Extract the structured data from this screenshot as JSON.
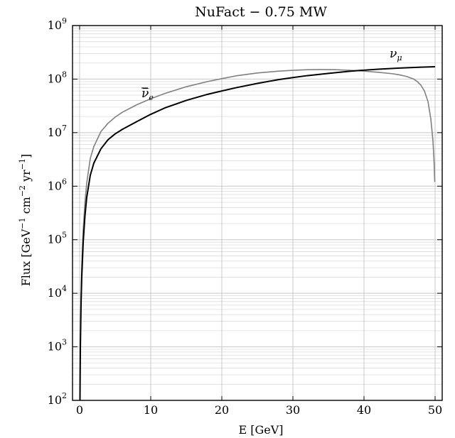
{
  "chart_data": {
    "type": "line",
    "title": "NuFact − 0.75 MW",
    "xlabel": "E [GeV]",
    "ylabel": {
      "base": "Flux [GeV",
      "sup1": "−1",
      "mid1": " cm",
      "sup2": "−2",
      "mid2": " yr",
      "sup3": "−1",
      "end": "]"
    },
    "xlim": [
      -1,
      51
    ],
    "ylim": [
      100,
      1000000000
    ],
    "yscale": "log",
    "grid": true,
    "x_ticks": [
      "0",
      "10",
      "20",
      "30",
      "40",
      "50"
    ],
    "x_tick_values": [
      0,
      10,
      20,
      30,
      40,
      50
    ],
    "y_ticks": [
      {
        "base": "10",
        "exp": "2",
        "value": 100
      },
      {
        "base": "10",
        "exp": "3",
        "value": 1000
      },
      {
        "base": "10",
        "exp": "4",
        "value": 10000
      },
      {
        "base": "10",
        "exp": "5",
        "value": 100000
      },
      {
        "base": "10",
        "exp": "6",
        "value": 1000000
      },
      {
        "base": "10",
        "exp": "7",
        "value": 10000000
      },
      {
        "base": "10",
        "exp": "8",
        "value": 100000000
      },
      {
        "base": "10",
        "exp": "9",
        "value": 1000000000
      }
    ],
    "series": [
      {
        "name": "ν̅e",
        "label_text": "ν̅",
        "label_sub": "e",
        "color": "#808080",
        "x": [
          0.05,
          0.1,
          0.2,
          0.3,
          0.5,
          0.75,
          1,
          1.5,
          2,
          3,
          4,
          5,
          6,
          8,
          10,
          12,
          15,
          18,
          20,
          22,
          25,
          28,
          30,
          32,
          34,
          36,
          38,
          40,
          42,
          44,
          45,
          46,
          47,
          47.5,
          48,
          48.5,
          49,
          49.4,
          49.7,
          49.85,
          49.95
        ],
        "y": [
          155,
          1200,
          9500,
          32000,
          150000,
          500000,
          1150000,
          3300000,
          5500000,
          10500000,
          15000000,
          19500000,
          24000000,
          33000000,
          43000000,
          54000000,
          72000000,
          90000000,
          102000000,
          115000000,
          130000000,
          141000000,
          146000000,
          150000000,
          151000000,
          150000000,
          146000000,
          141000000,
          134000000,
          126000000,
          120000000,
          112000000,
          100000000,
          90000000,
          77000000,
          60000000,
          38000000,
          18000000,
          7000000,
          3000000,
          1200000
        ]
      },
      {
        "name": "νμ",
        "label_text": "ν",
        "label_sub": "μ",
        "color": "#000000",
        "x": [
          0.05,
          0.1,
          0.2,
          0.3,
          0.5,
          0.75,
          1,
          1.5,
          2,
          3,
          4,
          5,
          6,
          8,
          10,
          12,
          15,
          18,
          20,
          22,
          25,
          28,
          30,
          32,
          35,
          38,
          40,
          42,
          45,
          48,
          50
        ],
        "y": [
          105,
          900,
          6500,
          20000,
          90000,
          280000,
          620000,
          1600000,
          2700000,
          5000000,
          7400000,
          9500000,
          11500000,
          16000000,
          22000000,
          29000000,
          40000000,
          52000000,
          60000000,
          69000000,
          83000000,
          98000000,
          107000000,
          116000000,
          128000000,
          140000000,
          147000000,
          153000000,
          161000000,
          167000000,
          170000000
        ]
      }
    ]
  }
}
